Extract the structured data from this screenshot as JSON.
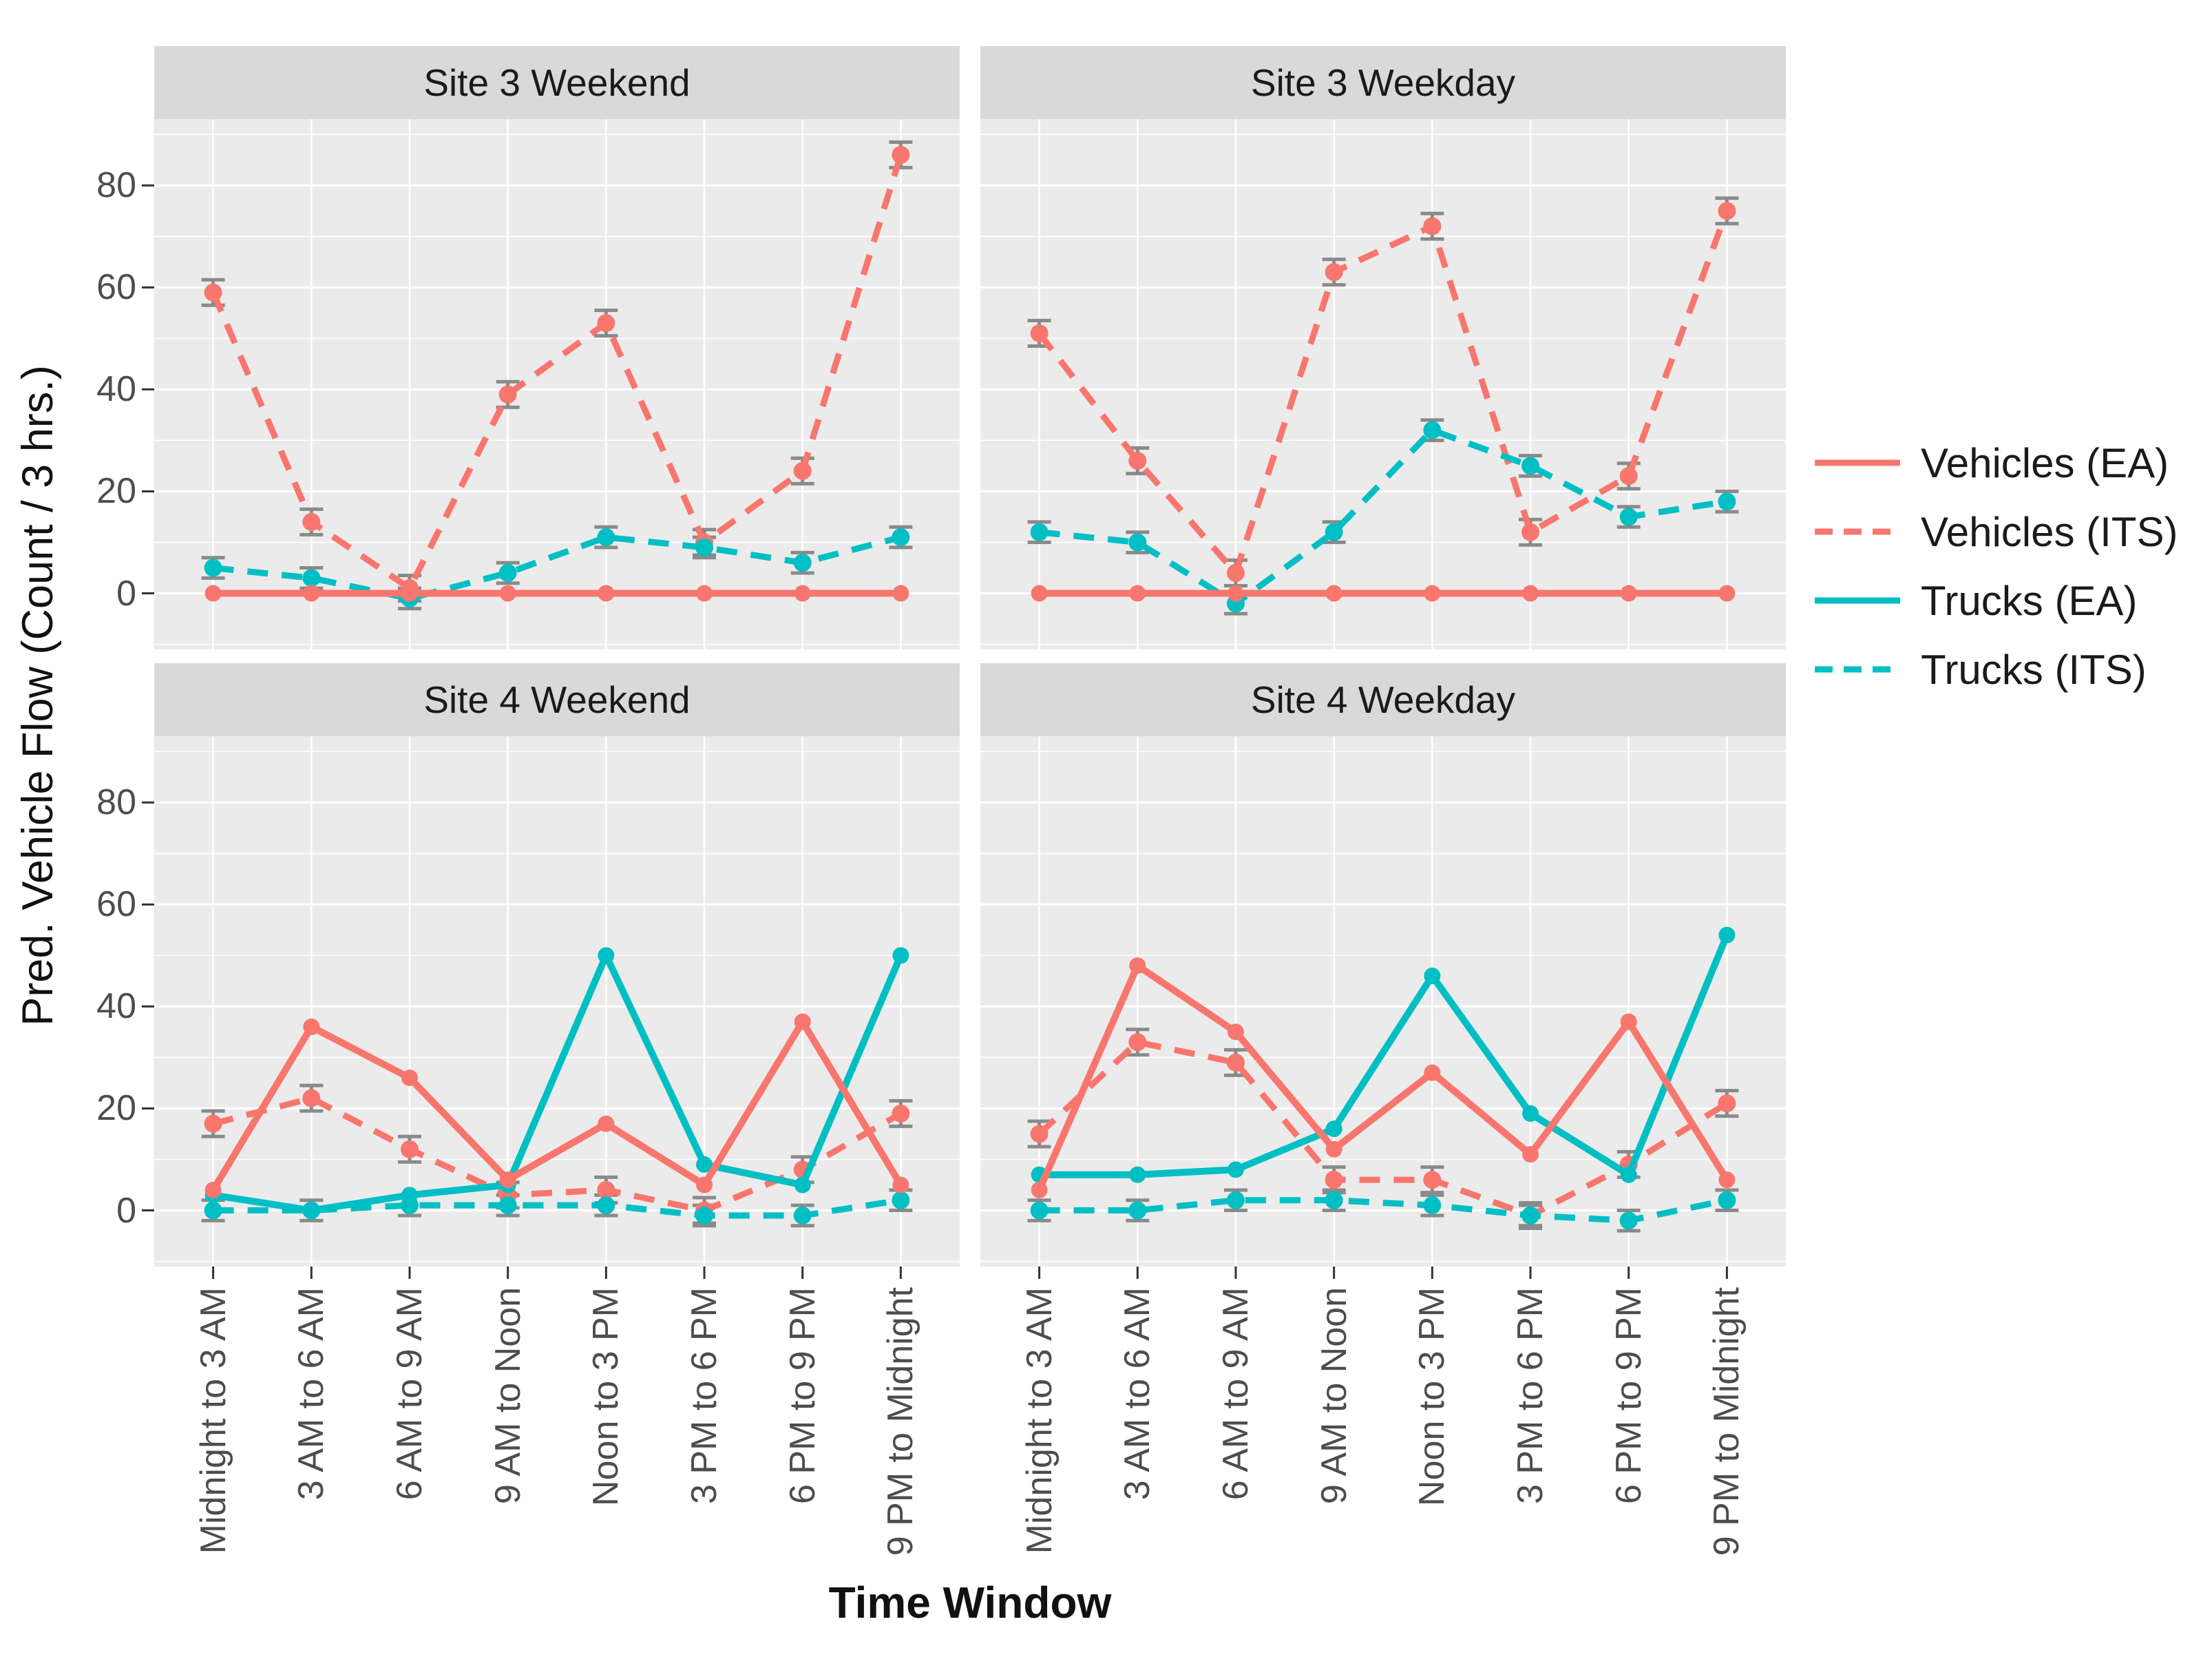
{
  "figure": {
    "y_axis_title": "Pred. Vehicle Flow (Count / 3 hrs.)",
    "x_axis_title": "Time Window",
    "colors": {
      "vehicles": "#F8766D",
      "trucks": "#00BFC4",
      "error_bar": "#8A8A8A",
      "panel_bg": "#EBEBEB",
      "strip_bg": "#D9D9D9",
      "grid": "#FFFFFF",
      "tick_mark": "#333333",
      "tick_text": "#4D4D4D"
    }
  },
  "chart_data": {
    "type": "line",
    "title": "",
    "xlabel": "Time Window",
    "ylabel": "Pred. Vehicle Flow (Count / 3 hrs.)",
    "ylim": [
      -11,
      93
    ],
    "y_ticks": [
      80,
      60,
      40,
      20,
      0
    ],
    "grid": "on",
    "legend_position": "right",
    "categories": [
      "Midnight to 3 AM",
      "3 AM to 6 AM",
      "6 AM to 9 AM",
      "9 AM to Noon",
      "Noon to 3 PM",
      "3 PM to 6 PM",
      "6 PM to 9 PM",
      "9 PM to Midnight"
    ],
    "series_defs": [
      {
        "id": "vehicles_ea",
        "name": "Vehicles (EA)",
        "color": "#F8766D",
        "style": "solid",
        "error": 0
      },
      {
        "id": "vehicles_its",
        "name": "Vehicles (ITS)",
        "color": "#F8766D",
        "style": "dashed",
        "error": 2.5
      },
      {
        "id": "trucks_ea",
        "name": "Trucks (EA)",
        "color": "#00BFC4",
        "style": "solid",
        "error": 0
      },
      {
        "id": "trucks_its",
        "name": "Trucks (ITS)",
        "color": "#00BFC4",
        "style": "dashed",
        "error": 2
      }
    ],
    "legend": [
      "Vehicles (EA)",
      "Vehicles (ITS)",
      "Trucks (EA)",
      "Trucks (ITS)"
    ],
    "panels": [
      {
        "title": "Site 3 Weekend",
        "series": {
          "vehicles_ea": [
            0,
            0,
            0,
            0,
            0,
            0,
            0,
            0
          ],
          "vehicles_its": [
            59,
            14,
            1,
            39,
            53,
            10,
            24,
            86
          ],
          "trucks_ea": null,
          "trucks_its": [
            5,
            3,
            -1,
            4,
            11,
            9,
            6,
            11
          ]
        }
      },
      {
        "title": "Site 3 Weekday",
        "series": {
          "vehicles_ea": [
            0,
            0,
            0,
            0,
            0,
            0,
            0,
            0
          ],
          "vehicles_its": [
            51,
            26,
            4,
            63,
            72,
            12,
            23,
            75
          ],
          "trucks_ea": null,
          "trucks_its": [
            12,
            10,
            -2,
            12,
            32,
            25,
            15,
            18
          ]
        }
      },
      {
        "title": "Site 4 Weekend",
        "series": {
          "vehicles_ea": [
            4,
            36,
            26,
            6,
            17,
            5,
            37,
            5
          ],
          "vehicles_its": [
            17,
            22,
            12,
            3,
            4,
            0,
            8,
            19
          ],
          "trucks_ea": [
            3,
            0,
            3,
            5,
            50,
            9,
            5,
            50
          ],
          "trucks_its": [
            0,
            0,
            1,
            1,
            1,
            -1,
            -1,
            2
          ]
        }
      },
      {
        "title": "Site 4 Weekday",
        "series": {
          "vehicles_ea": [
            4,
            48,
            35,
            12,
            27,
            11,
            37,
            6
          ],
          "vehicles_its": [
            15,
            33,
            29,
            6,
            6,
            -1,
            9,
            21
          ],
          "trucks_ea": [
            7,
            7,
            8,
            16,
            46,
            19,
            7,
            54
          ],
          "trucks_its": [
            0,
            0,
            2,
            2,
            1,
            -1,
            -2,
            2
          ]
        }
      }
    ]
  }
}
